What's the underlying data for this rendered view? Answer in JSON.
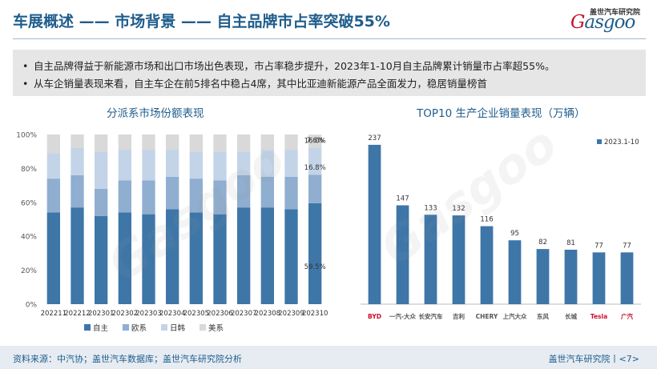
{
  "header": {
    "title": "车展概述 —— 市场背景 —— 自主品牌市占率突破55%",
    "logo_sub": "盖世汽车研究院",
    "logo_main": "asgoo",
    "logo_initial": "G"
  },
  "summary": {
    "bullets": [
      "自主品牌得益于新能源市场和出口市场出色表现，市占率稳步提升，2023年1-10月自主品牌累计销量市占率超55%。",
      "从车企销量表现来看，自主车企在前5排名中稳占4席，其中比亚迪新能源产品全面发力，稳居销量榜首"
    ],
    "bullet_symbol": "•"
  },
  "footer": {
    "source": "资料来源：中汽协；盖世汽车数据库；盖世汽车研究院分析",
    "page": "盖世汽车研究院丨<7>"
  },
  "watermark": "Gasgoo",
  "colors": {
    "title": "#1f5d8c",
    "domestic": "#3e76a8",
    "european": "#8faed0",
    "japanese_korean": "#c3d4e8",
    "american": "#d9d9d9",
    "bar": "#3e76a8"
  },
  "chart_data": [
    {
      "type": "bar",
      "stacked": true,
      "percent": true,
      "title": "分派系市场份额表现",
      "categories": [
        "202211",
        "202212",
        "202301",
        "202302",
        "202303",
        "202304",
        "202305",
        "202306",
        "202307",
        "202308",
        "202309",
        "202310"
      ],
      "series": [
        {
          "name": "自主",
          "values": [
            54,
            57,
            52,
            54,
            53,
            56,
            54,
            53,
            57,
            57,
            56,
            59.5
          ]
        },
        {
          "name": "欧系",
          "values": [
            20,
            19,
            16,
            19,
            20,
            19,
            20,
            20,
            19,
            18,
            19,
            16.8
          ]
        },
        {
          "name": "日韩",
          "values": [
            15,
            16,
            22,
            18,
            18,
            16,
            16,
            17,
            14,
            16,
            16,
            16.0
          ]
        },
        {
          "name": "美系",
          "values": [
            11,
            8,
            10,
            9,
            9,
            9,
            10,
            10,
            10,
            9,
            9,
            7.6
          ]
        }
      ],
      "yticks": [
        "0%",
        "20%",
        "40%",
        "60%",
        "80%",
        "100%"
      ],
      "ylim": [
        0,
        100
      ],
      "data_labels": [
        "59.5%",
        "16.8%",
        "16.0%",
        "7.6%"
      ],
      "legend_position": "bottom"
    },
    {
      "type": "bar",
      "title": "TOP10 生产企业销量表现（万辆）",
      "categories": [
        "BYD",
        "一汽-大众",
        "长安汽车",
        "吉利",
        "CHERY",
        "上汽大众",
        "东风",
        "长城",
        "Tesla",
        "广汽"
      ],
      "series": [
        {
          "name": "2023.1-10",
          "values": [
            237,
            147,
            133,
            132,
            116,
            95,
            82,
            81,
            77,
            77
          ]
        }
      ],
      "data_labels": [
        "237",
        "147",
        "133",
        "132",
        "116",
        "95",
        "82",
        "81",
        "77",
        "77"
      ],
      "ylim": [
        0,
        250
      ],
      "legend_position": "top-right"
    }
  ]
}
